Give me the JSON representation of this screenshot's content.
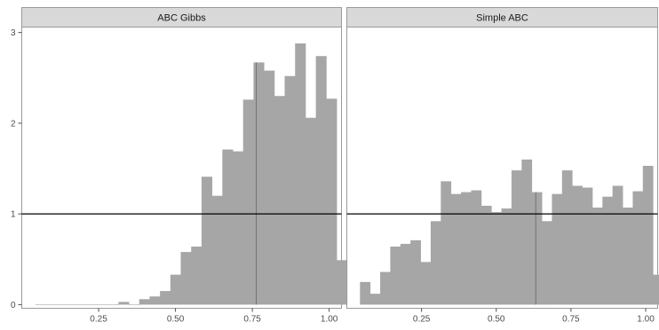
{
  "chart_data": {
    "type": "bar",
    "subtype": "faceted-histogram",
    "xlabel": "",
    "ylabel": "",
    "xlim": [
      0.0,
      1.04
    ],
    "ylim": [
      -0.04,
      3.06
    ],
    "x_ticks": [
      0.25,
      0.5,
      0.75,
      1.0
    ],
    "x_tick_labels": [
      "0.25",
      "0.50",
      "0.75",
      "1.00"
    ],
    "y_ticks": [
      0,
      1,
      2,
      3
    ],
    "y_tick_labels": [
      "0",
      "1",
      "2",
      "3"
    ],
    "bar_color": "#a6a6a6",
    "reference_line": {
      "y": 1,
      "color": "#000000"
    },
    "panels": [
      {
        "title": "ABC Gibbs",
        "bin_start": 0.044,
        "bin_width": 0.0338,
        "values": [
          0,
          0,
          0,
          0,
          0,
          0,
          0,
          0,
          0.03,
          0,
          0.06,
          0.09,
          0.15,
          0.33,
          0.58,
          0.64,
          1.41,
          1.2,
          1.71,
          1.69,
          2.26,
          2.67,
          2.58,
          2.3,
          2.52,
          2.88,
          2.06,
          2.74,
          2.27,
          0.49
        ],
        "vertical_marker_x": 0.763
      },
      {
        "title": "Simple ABC",
        "bin_start": 0.044,
        "bin_width": 0.0338,
        "values": [
          0.25,
          0.12,
          0.36,
          0.64,
          0.67,
          0.71,
          0.47,
          0.92,
          1.36,
          1.22,
          1.24,
          1.26,
          1.09,
          1.02,
          1.06,
          1.48,
          1.6,
          1.24,
          0.92,
          1.22,
          1.48,
          1.31,
          1.29,
          1.07,
          1.19,
          1.31,
          1.07,
          1.25,
          1.53,
          0.33
        ],
        "vertical_marker_x": 0.632
      }
    ]
  }
}
